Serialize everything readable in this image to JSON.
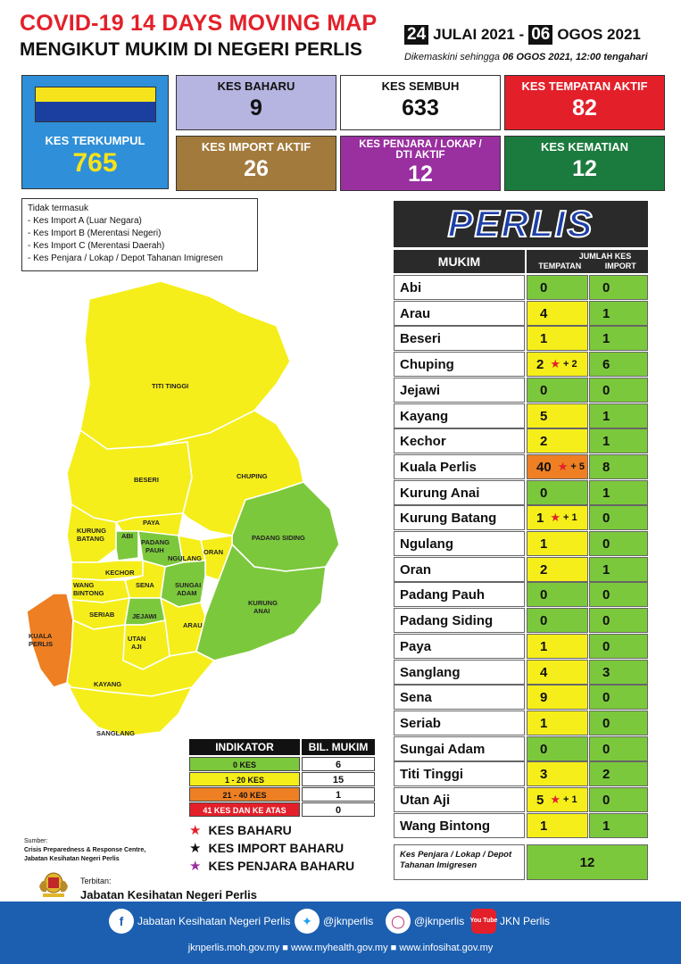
{
  "header": {
    "title_line1": "COVID-19 14 DAYS MOVING MAP",
    "title_line2": "MENGIKUT MUKIM DI NEGERI PERLIS",
    "date_start_day": "24",
    "date_start_rest": "JULAI 2021 -",
    "date_end_day": "06",
    "date_end_rest": "OGOS 2021",
    "updated_label": "Dikemaskini sehingga",
    "updated_value": "06 OGOS  2021, 12:00 tengahari"
  },
  "summary": {
    "kes_terkumpul": {
      "label": "KES TERKUMPUL",
      "value": "765"
    },
    "kes_baharu": {
      "label": "KES BAHARU",
      "value": "9"
    },
    "kes_sembuh": {
      "label": "KES SEMBUH",
      "value": "633"
    },
    "kes_tempatan_aktif": {
      "label": "KES TEMPATAN AKTIF",
      "value": "82"
    },
    "kes_import_aktif": {
      "label": "KES IMPORT AKTIF",
      "value": "26"
    },
    "kes_penjara_aktif": {
      "label": "KES PENJARA / LOKAP / DTI AKTIF",
      "value": "12"
    },
    "kes_kematian": {
      "label": "KES KEMATIAN",
      "value": "12"
    }
  },
  "colors": {
    "flag_yellow": "#f7e31b",
    "flag_blue": "#1b3fa0",
    "terkumpul_bg": "#2f8fd8",
    "terkumpul_value": "#f7e31b",
    "baharu_bg": "#b6b4e0",
    "tempatan_bg": "#e3202a",
    "import_bg": "#a27a3c",
    "penjara_bg": "#9a2fa0",
    "kematian_bg": "#1b7a3d",
    "level_0": "#7cc83c",
    "level_1_20": "#f5ee1a",
    "level_21_40": "#ee7f22",
    "level_41": "#e3202a"
  },
  "note": {
    "title": "Tidak termasuk",
    "items": [
      "- Kes Import A (Luar Negara)",
      "- Kes Import B (Merentasi Negeri)",
      "- Kes Import C (Merentasi Daerah)",
      "- Kes Penjara / Lokap / Depot Tahanan Imigresen"
    ]
  },
  "table": {
    "state": "PERLIS",
    "col_mukim": "MUKIM",
    "col_jumlah": "JUMLAH KES",
    "col_tempatan": "TEMPATAN",
    "col_import": "IMPORT",
    "rows": [
      {
        "name": "Abi",
        "tempatan": "0",
        "new": "",
        "import": "0",
        "level": "level_0",
        "import_level": "level_0"
      },
      {
        "name": "Arau",
        "tempatan": "4",
        "new": "",
        "import": "1",
        "level": "level_1_20",
        "import_level": "level_0"
      },
      {
        "name": "Beseri",
        "tempatan": "1",
        "new": "",
        "import": "1",
        "level": "level_1_20",
        "import_level": "level_0"
      },
      {
        "name": "Chuping",
        "tempatan": "2",
        "new": "+ 2",
        "import": "6",
        "level": "level_1_20",
        "import_level": "level_0"
      },
      {
        "name": "Jejawi",
        "tempatan": "0",
        "new": "",
        "import": "0",
        "level": "level_0",
        "import_level": "level_0"
      },
      {
        "name": "Kayang",
        "tempatan": "5",
        "new": "",
        "import": "1",
        "level": "level_1_20",
        "import_level": "level_0"
      },
      {
        "name": "Kechor",
        "tempatan": "2",
        "new": "",
        "import": "1",
        "level": "level_1_20",
        "import_level": "level_0"
      },
      {
        "name": "Kuala Perlis",
        "tempatan": "40",
        "new": "+ 5",
        "import": "8",
        "level": "level_21_40",
        "import_level": "level_0"
      },
      {
        "name": "Kurung Anai",
        "tempatan": "0",
        "new": "",
        "import": "1",
        "level": "level_0",
        "import_level": "level_0"
      },
      {
        "name": "Kurung Batang",
        "tempatan": "1",
        "new": "+ 1",
        "import": "0",
        "level": "level_1_20",
        "import_level": "level_0"
      },
      {
        "name": "Ngulang",
        "tempatan": "1",
        "new": "",
        "import": "0",
        "level": "level_1_20",
        "import_level": "level_0"
      },
      {
        "name": "Oran",
        "tempatan": "2",
        "new": "",
        "import": "1",
        "level": "level_1_20",
        "import_level": "level_0"
      },
      {
        "name": "Padang Pauh",
        "tempatan": "0",
        "new": "",
        "import": "0",
        "level": "level_0",
        "import_level": "level_0"
      },
      {
        "name": "Padang Siding",
        "tempatan": "0",
        "new": "",
        "import": "0",
        "level": "level_0",
        "import_level": "level_0"
      },
      {
        "name": "Paya",
        "tempatan": "1",
        "new": "",
        "import": "0",
        "level": "level_1_20",
        "import_level": "level_0"
      },
      {
        "name": "Sanglang",
        "tempatan": "4",
        "new": "",
        "import": "3",
        "level": "level_1_20",
        "import_level": "level_0"
      },
      {
        "name": "Sena",
        "tempatan": "9",
        "new": "",
        "import": "0",
        "level": "level_1_20",
        "import_level": "level_0"
      },
      {
        "name": "Seriab",
        "tempatan": "1",
        "new": "",
        "import": "0",
        "level": "level_1_20",
        "import_level": "level_0"
      },
      {
        "name": "Sungai Adam",
        "tempatan": "0",
        "new": "",
        "import": "0",
        "level": "level_0",
        "import_level": "level_0"
      },
      {
        "name": "Titi Tinggi",
        "tempatan": "3",
        "new": "",
        "import": "2",
        "level": "level_1_20",
        "import_level": "level_0"
      },
      {
        "name": "Utan Aji",
        "tempatan": "5",
        "new": "+ 1",
        "import": "0",
        "level": "level_1_20",
        "import_level": "level_0"
      },
      {
        "name": "Wang Bintong",
        "tempatan": "1",
        "new": "",
        "import": "1",
        "level": "level_1_20",
        "import_level": "level_0"
      }
    ],
    "penjara_label": "Kes Penjara / Lokap / Depot Tahanan Imigresen",
    "penjara_value": "12"
  },
  "map": {
    "labels": {
      "titi_tinggi": "TITI TINGGI",
      "beseri": "BESERI",
      "chuping": "CHUPING",
      "paya": "PAYA",
      "kurung_batang_1": "KURUNG",
      "kurung_batang_2": "BATANG",
      "abi": "ABI",
      "padang_pauh_1": "PADANG",
      "padang_pauh_2": "PAUH",
      "ngulang": "NGULANG",
      "oran": "ORAN",
      "padang_siding": "PADANG SIDING",
      "kechor": "KECHOR",
      "wang_bintong_1": "WANG",
      "wang_bintong_2": "BINTONG",
      "sena": "SENA",
      "sungai_adam_1": "SUNGAI",
      "sungai_adam_2": "ADAM",
      "kurung_anai_1": "KURUNG",
      "kurung_anai_2": "ANAI",
      "seriab": "SERIAB",
      "jejawi": "JEJAWI",
      "arau": "ARAU",
      "kuala_perlis_1": "KUALA",
      "kuala_perlis_2": "PERLIS",
      "utan_aji_1": "UTAN",
      "utan_aji_2": "AJI",
      "kayang": "KAYANG",
      "sanglang": "SANGLANG"
    }
  },
  "legend": {
    "col_indikator": "INDIKATOR",
    "col_bil": "BIL. MUKIM",
    "rows": [
      {
        "label": "0 KES",
        "count": "6",
        "level": "level_0"
      },
      {
        "label": "1 - 20 KES",
        "count": "15",
        "level": "level_1_20"
      },
      {
        "label": "21 - 40 KES",
        "count": "1",
        "level": "level_21_40"
      },
      {
        "label": "41 KES DAN KE ATAS",
        "count": "0",
        "level": "level_41"
      }
    ],
    "keys": [
      {
        "label": "KES BAHARU",
        "color": "#e3202a"
      },
      {
        "label": "KES IMPORT BAHARU",
        "color": "#111111"
      },
      {
        "label": "KES PENJARA BAHARU",
        "color": "#9a2fa0"
      }
    ]
  },
  "source": {
    "label": "Sumber:",
    "line1": "Crisis Preparedness & Response Centre,",
    "line2": "Jabatan Kesihatan Negeri Perlis"
  },
  "publisher": {
    "label": "Terbitan:",
    "name": "Jabatan Kesihatan Negeri Perlis"
  },
  "footer": {
    "facebook": "Jabatan Kesihatan Negeri Perlis",
    "twitter": "@jknperlis",
    "instagram": "@jknperlis",
    "youtube": "JKN Perlis",
    "youtube_icon_text": "You Tube",
    "urls": "jknperlis.moh.gov.my ■ www.myhealth.gov.my ■ www.infosihat.gov.my"
  }
}
